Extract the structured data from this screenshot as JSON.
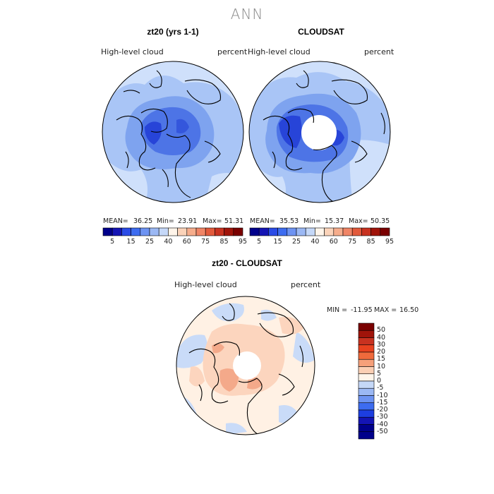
{
  "page": {
    "title": "ANN"
  },
  "panels": [
    {
      "title": "zt20 (yrs 1-1)",
      "variable": "High-level cloud",
      "units": "percent",
      "stats": {
        "mean_label": "MEAN=",
        "mean": "36.25",
        "min_label": "Min=",
        "min": "23.91",
        "max_label": "Max=",
        "max": "51.31"
      }
    },
    {
      "title": "CLOUDSAT",
      "variable": "High-level cloud",
      "units": "percent",
      "stats": {
        "mean_label": "MEAN=",
        "mean": "35.53",
        "min_label": "Min=",
        "min": "15.37",
        "max_label": "Max=",
        "max": "50.35"
      }
    }
  ],
  "diff_panel": {
    "title": "zt20 - CLOUDSAT",
    "variable": "High-level cloud",
    "units": "percent",
    "min_label": "MIN =",
    "min": "-11.95",
    "max_label": "MAX =",
    "max": "16.50"
  },
  "colorbar_abs": {
    "labels": [
      "5",
      "15",
      "25",
      "40",
      "60",
      "75",
      "85",
      "95"
    ],
    "colors": [
      "#00008b",
      "#1414b4",
      "#2a4be6",
      "#3d6cf0",
      "#6d93f2",
      "#9bb8f4",
      "#c5d8f8",
      "#fff5ea",
      "#fbd3b9",
      "#f6ad8c",
      "#f08566",
      "#e25a3c",
      "#c83220",
      "#a0140a",
      "#7a0000"
    ]
  },
  "colorbar_diff": {
    "labels": [
      "50",
      "40",
      "30",
      "20",
      "15",
      "10",
      "5",
      "0",
      "-5",
      "-10",
      "-15",
      "-20",
      "-30",
      "-40",
      "-50"
    ],
    "colors": [
      "#7a0000",
      "#a0140a",
      "#c83220",
      "#e8421f",
      "#f06a3c",
      "#f6a07a",
      "#fbcfb4",
      "#fff5ea",
      "#c5d8f8",
      "#9bb8f4",
      "#6d93f2",
      "#3d6cf0",
      "#1d3ee0",
      "#1414b4",
      "#00008b"
    ]
  },
  "map_colors": {
    "lightest_blue": "#cfe0fb",
    "light_blue": "#a9c5f6",
    "mid_blue": "#7ea3ef",
    "deep_blue": "#4d74e6",
    "darkest_blue": "#2744d8",
    "cream": "#fff1e4",
    "peach": "#fcd5be",
    "salmon": "#f4a98a",
    "light_diff_blue": "#c9dbf8",
    "coast": "#000000"
  }
}
